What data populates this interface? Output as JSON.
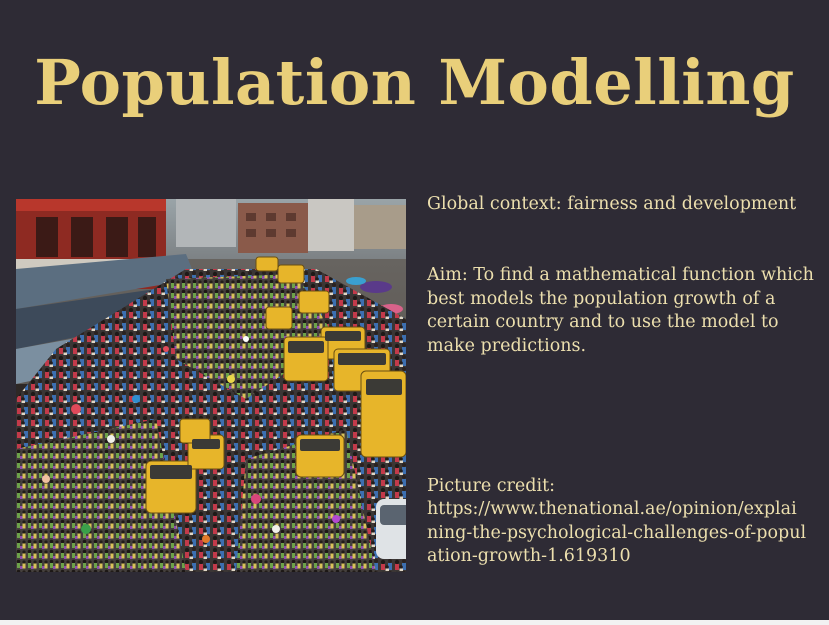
{
  "slide": {
    "title": "Population Modelling",
    "global_context": "Global context: fairness and development",
    "aim": "Aim: To find a mathematical function which best models the population growth of a certain country and to use the model to make predictions.",
    "picture_credit_label": "Picture credit:",
    "picture_credit_url": "https://www.thenational.ae/opinion/explaining-the-psychological-challenges-of-population-growth-1.619310"
  },
  "colors": {
    "background": "#2e2b35",
    "title": "#e9cf7a",
    "body_text": "#ecdfae"
  },
  "photo": {
    "subject": "crowded-street-market-photo"
  }
}
